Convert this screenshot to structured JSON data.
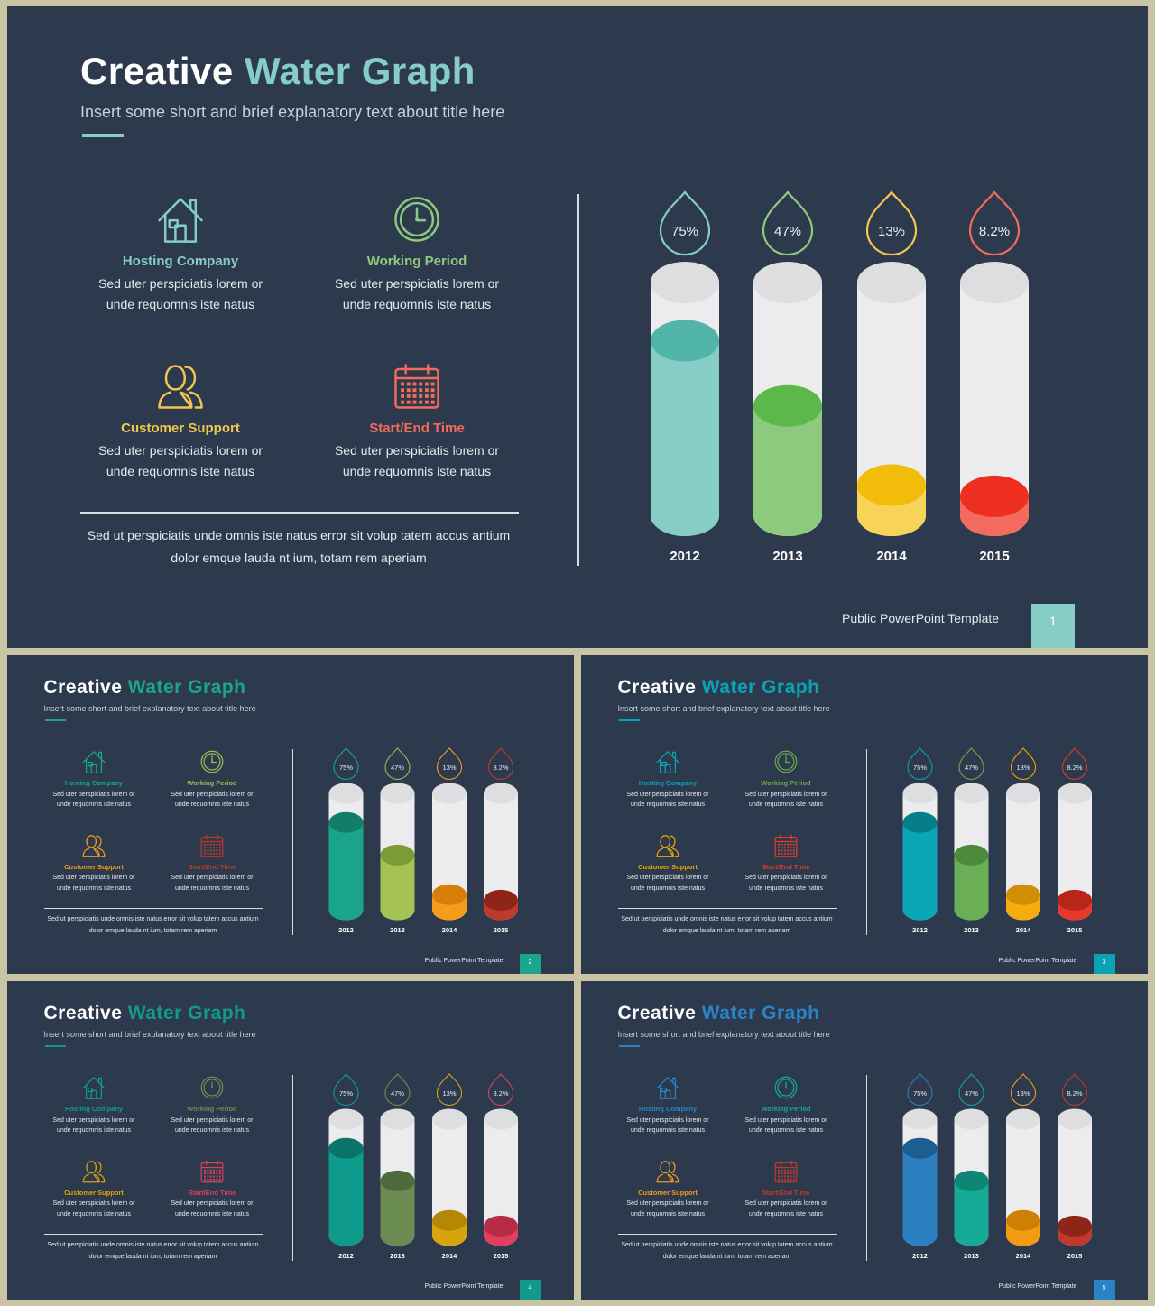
{
  "title_part1": "Creative",
  "title_part2": "Water Graph",
  "subtitle": "Insert some short and brief explanatory text about title here",
  "features": [
    {
      "icon": "house-icon",
      "title": "Hosting Company",
      "desc": "Sed uter perspiciatis lorem or\nunde requomnis iste natus"
    },
    {
      "icon": "clock-icon",
      "title": "Working Period",
      "desc": "Sed uter perspiciatis lorem or\nunde requomnis iste natus"
    },
    {
      "icon": "users-icon",
      "title": "Customer Support",
      "desc": "Sed uter perspiciatis lorem or\nunde requomnis iste natus"
    },
    {
      "icon": "calendar-icon",
      "title": "Start/End Time",
      "desc": "Sed uter perspiciatis lorem or\nunde requomnis iste natus"
    }
  ],
  "paragraph": "Sed ut perspiciatis unde omnis iste natus error sit volup tatem accus antium\ndolor emque lauda nt ium, totam rem aperiam",
  "footer": "Public PowerPoint Template",
  "chart_data": {
    "type": "bar",
    "categories": [
      "2012",
      "2013",
      "2014",
      "2015"
    ],
    "values": [
      75,
      47,
      13,
      8.2
    ],
    "value_labels": [
      "75%",
      "47%",
      "13%",
      "8.2%"
    ],
    "ylim": [
      0,
      100
    ]
  },
  "slides": [
    {
      "page": "1",
      "accent": "#86cdc6",
      "feature_colors": [
        "#86cdc6",
        "#8fc97f",
        "#f3c553",
        "#f26b5b"
      ],
      "bar_fill": [
        "#86cdc6",
        "#8dca7d",
        "#f7d357",
        "#f36a5e"
      ],
      "bar_top": [
        "#52b5aa",
        "#5cb84a",
        "#f2bd0a",
        "#ee2f1f"
      ],
      "drop_colors": [
        "#86cdc6",
        "#8fc97f",
        "#f3c553",
        "#f26b5b"
      ]
    },
    {
      "page": "2",
      "accent": "#19a68b",
      "feature_colors": [
        "#19a68b",
        "#9dbb52",
        "#f29a1f",
        "#c0392b"
      ],
      "bar_fill": [
        "#1aa58a",
        "#a5c255",
        "#f59c1c",
        "#c0392b"
      ],
      "bar_top": [
        "#117e69",
        "#7c9a36",
        "#d67f0a",
        "#8f2519"
      ],
      "drop_colors": [
        "#19a68b",
        "#9dbb52",
        "#f29a1f",
        "#c0392b"
      ]
    },
    {
      "page": "3",
      "accent": "#0aa3b5",
      "feature_colors": [
        "#0aa3b5",
        "#6aa84f",
        "#f0a500",
        "#e03b2e"
      ],
      "bar_fill": [
        "#0aa6b6",
        "#6aaf55",
        "#f4ad0c",
        "#e8382b"
      ],
      "bar_top": [
        "#067d8a",
        "#4e8a3c",
        "#d08f05",
        "#b82619"
      ],
      "drop_colors": [
        "#0aa3b5",
        "#6aa84f",
        "#f0a500",
        "#e03b2e"
      ]
    },
    {
      "page": "4",
      "accent": "#119a8c",
      "feature_colors": [
        "#119a8c",
        "#6a8c52",
        "#d9a30e",
        "#d9405a"
      ],
      "bar_fill": [
        "#0f9b8c",
        "#6a8c52",
        "#d8a40e",
        "#e0405c"
      ],
      "bar_top": [
        "#0a7468",
        "#4f6b3c",
        "#b48705",
        "#b52c44"
      ],
      "drop_colors": [
        "#119a8c",
        "#6a8c52",
        "#d9a30e",
        "#d9405a"
      ]
    },
    {
      "page": "5",
      "accent": "#2b82c4",
      "feature_colors": [
        "#2b82c4",
        "#15a89a",
        "#f29a1f",
        "#c0392b"
      ],
      "bar_fill": [
        "#2c7fc0",
        "#16ab98",
        "#f39c12",
        "#c0392b"
      ],
      "bar_top": [
        "#1c5e92",
        "#0f8576",
        "#cf7f06",
        "#8f2519"
      ],
      "drop_colors": [
        "#2b82c4",
        "#15a89a",
        "#f29a1f",
        "#c0392b"
      ]
    }
  ]
}
